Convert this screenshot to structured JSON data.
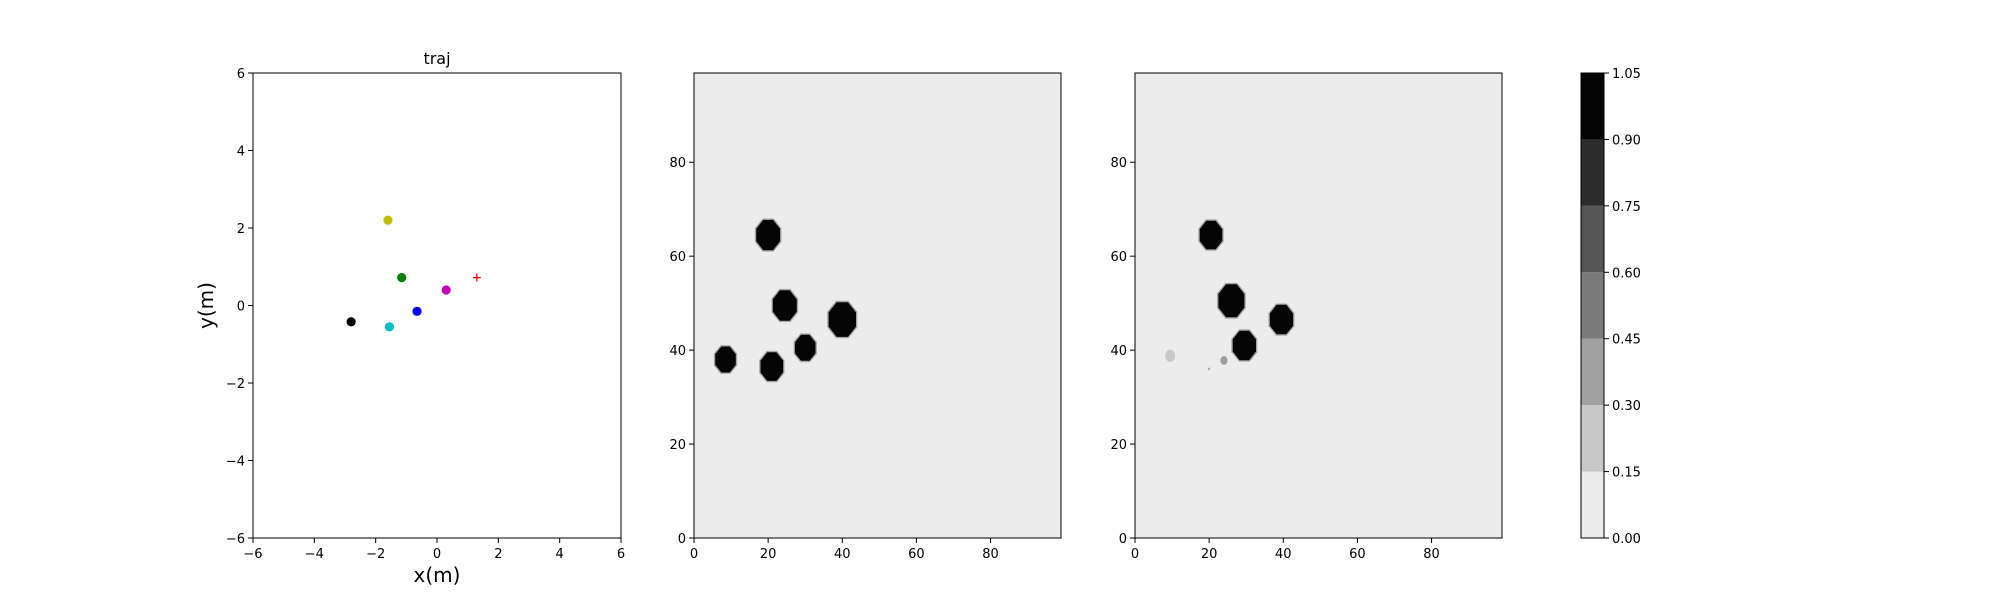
{
  "chart_data": [
    {
      "type": "scatter",
      "title": "traj",
      "xlabel": "x(m)",
      "ylabel": "y(m)",
      "xlim": [
        -6,
        6
      ],
      "ylim": [
        -6,
        6
      ],
      "xticks": [
        "−6",
        "−4",
        "−2",
        "0",
        "2",
        "4",
        "6"
      ],
      "yticks": [
        "−6",
        "−4",
        "−2",
        "0",
        "2",
        "4",
        "6"
      ],
      "points": [
        {
          "name": "yellow-agent",
          "x": -1.6,
          "y": 2.2,
          "color": "#bfbf00",
          "marker": "circle"
        },
        {
          "name": "green-agent",
          "x": -1.15,
          "y": 0.72,
          "color": "#008000",
          "marker": "circle"
        },
        {
          "name": "magenta-agent",
          "x": 0.3,
          "y": 0.4,
          "color": "#bf00bf",
          "marker": "circle"
        },
        {
          "name": "blue-agent",
          "x": -0.65,
          "y": -0.15,
          "color": "#0000ff",
          "marker": "circle"
        },
        {
          "name": "black-agent",
          "x": -2.8,
          "y": -0.42,
          "color": "#000000",
          "marker": "circle"
        },
        {
          "name": "cyan-agent",
          "x": -1.55,
          "y": -0.55,
          "color": "#00bfbf",
          "marker": "circle"
        },
        {
          "name": "goal-marker",
          "x": 1.3,
          "y": 0.72,
          "color": "#ff0000",
          "marker": "plus"
        }
      ]
    },
    {
      "type": "heatmap",
      "title": "",
      "xlim": [
        0,
        99
      ],
      "ylim": [
        0,
        99
      ],
      "xticks": [
        "0",
        "20",
        "40",
        "60",
        "80"
      ],
      "yticks": [
        "0",
        "20",
        "40",
        "60",
        "80"
      ],
      "background_value": 0.0,
      "blobs": [
        {
          "x": 20,
          "y": 64.5,
          "r": 3.5,
          "value": 1.0
        },
        {
          "x": 24.5,
          "y": 49.5,
          "r": 3.5,
          "value": 1.0
        },
        {
          "x": 40,
          "y": 46.5,
          "r": 4.0,
          "value": 1.0
        },
        {
          "x": 30,
          "y": 40.5,
          "r": 3.0,
          "value": 1.0
        },
        {
          "x": 8.5,
          "y": 38,
          "r": 3.0,
          "value": 1.0
        },
        {
          "x": 21,
          "y": 36.5,
          "r": 3.3,
          "value": 1.0
        }
      ]
    },
    {
      "type": "heatmap",
      "title": "",
      "xlim": [
        0,
        99
      ],
      "ylim": [
        0,
        99
      ],
      "xticks": [
        "0",
        "20",
        "40",
        "60",
        "80"
      ],
      "yticks": [
        "0",
        "20",
        "40",
        "60",
        "80"
      ],
      "background_value": 0.0,
      "blobs": [
        {
          "x": 20.5,
          "y": 64.5,
          "r": 3.3,
          "value": 1.0
        },
        {
          "x": 26,
          "y": 50.5,
          "r": 3.8,
          "value": 1.0
        },
        {
          "x": 39.5,
          "y": 46.5,
          "r": 3.4,
          "value": 1.0
        },
        {
          "x": 29.5,
          "y": 41,
          "r": 3.4,
          "value": 1.0
        },
        {
          "x": 9.5,
          "y": 38.8,
          "r": 1.4,
          "value": 0.2
        },
        {
          "x": 24,
          "y": 37.8,
          "r": 1.0,
          "value": 0.4
        },
        {
          "x": 20,
          "y": 36,
          "r": 0.3,
          "value": 0.3
        }
      ]
    },
    {
      "type": "colorbar",
      "levels": [
        0.0,
        0.15,
        0.3,
        0.45,
        0.6,
        0.75,
        0.9,
        1.05
      ],
      "tick_labels": [
        "0.00",
        "0.15",
        "0.30",
        "0.45",
        "0.60",
        "0.75",
        "0.90",
        "1.05"
      ],
      "colors": [
        "#ececec",
        "#c8c8c8",
        "#a0a0a0",
        "#7a7a7a",
        "#565656",
        "#2c2c2c",
        "#050505"
      ]
    }
  ]
}
